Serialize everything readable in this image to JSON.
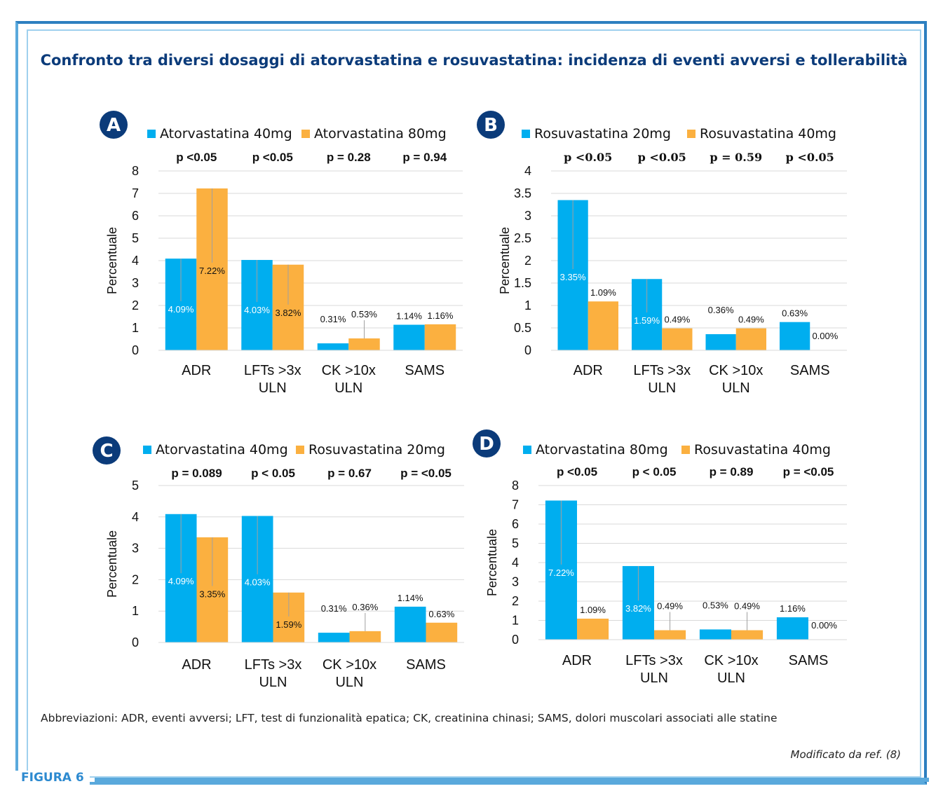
{
  "title": "Confronto tra diversi dosaggi di atorvastatina e rosuvastatina: incidenza di eventi avversi e tollerabilità",
  "abbreviations": "Abbreviazioni: ADR, eventi avversi; LFT, test di funzionalità epatica; CK, creatinina chinasi; SAMS, dolori muscolari associati alle statine",
  "credit": "Modificato da ref. (8)",
  "figure_label": "FIGURA 6",
  "colors": {
    "blue": "#00aeef",
    "orange": "#fbb040",
    "badge": "#0b3b7a",
    "title": "#0b3b7a"
  },
  "chart_data": [
    {
      "panel": "A",
      "type": "bar",
      "ylabel": "Percentuale",
      "ylim": [
        0,
        8
      ],
      "yticks": [
        "0",
        "1",
        "2",
        "3",
        "4",
        "5",
        "6",
        "7",
        "8"
      ],
      "categories": [
        [
          "ADR"
        ],
        [
          "LFTs >3x",
          "ULN"
        ],
        [
          "CK >10x",
          "ULN"
        ],
        [
          "SAMS"
        ]
      ],
      "p_values": [
        "p <0.05",
        "p <0.05",
        "p = 0.28",
        "p = 0.94"
      ],
      "series": [
        {
          "name": "Atorvastatina 40mg",
          "values": [
            4.09,
            4.03,
            0.31,
            1.14
          ],
          "labels": [
            "4.09%",
            "4.03%",
            "0.31%",
            "1.14%"
          ]
        },
        {
          "name": "Atorvastatina 80mg",
          "values": [
            7.22,
            3.82,
            0.53,
            1.16
          ],
          "labels": [
            "7.22%",
            "3.82%",
            "0.53%",
            "1.16%"
          ]
        }
      ]
    },
    {
      "panel": "B",
      "type": "bar",
      "ylabel": "Percentuale",
      "ylim": [
        0,
        4
      ],
      "yticks": [
        "0",
        "0.5",
        "1",
        "1.5",
        "2",
        "2.5",
        "3",
        "3.5",
        "4"
      ],
      "categories": [
        [
          "ADR"
        ],
        [
          "LFTs >3x",
          "ULN"
        ],
        [
          "CK >10x",
          "ULN"
        ],
        [
          "SAMS"
        ]
      ],
      "p_values": [
        "p <0.05",
        "p <0.05",
        "p = 0.59",
        "p <0.05"
      ],
      "series": [
        {
          "name": "Rosuvastatina 20mg",
          "values": [
            3.35,
            1.59,
            0.36,
            0.63
          ],
          "labels": [
            "3.35%",
            "1.59%",
            "0.36%",
            "0.63%"
          ]
        },
        {
          "name": "Rosuvastatina 40mg",
          "values": [
            1.09,
            0.49,
            0.49,
            0.0
          ],
          "labels": [
            "1.09%",
            "0.49%",
            "0.49%",
            "0.00%"
          ]
        }
      ]
    },
    {
      "panel": "C",
      "type": "bar",
      "ylabel": "Percentuale",
      "ylim": [
        0,
        5
      ],
      "yticks": [
        "0",
        "1",
        "2",
        "3",
        "4",
        "5"
      ],
      "categories": [
        [
          "ADR"
        ],
        [
          "LFTs >3x",
          "ULN"
        ],
        [
          "CK >10x",
          "ULN"
        ],
        [
          "SAMS"
        ]
      ],
      "p_values": [
        "p = 0.089",
        "p < 0.05",
        "p = 0.67",
        "p = <0.05"
      ],
      "series": [
        {
          "name": "Atorvastatina 40mg",
          "values": [
            4.09,
            4.03,
            0.31,
            1.14
          ],
          "labels": [
            "4.09%",
            "4.03%",
            "0.31%",
            "1.14%"
          ]
        },
        {
          "name": "Rosuvastatina 20mg",
          "values": [
            3.35,
            1.59,
            0.36,
            0.63
          ],
          "labels": [
            "3.35%",
            "1.59%",
            "0.36%",
            "0.63%"
          ]
        }
      ]
    },
    {
      "panel": "D",
      "type": "bar",
      "ylabel": "Percentuale",
      "ylim": [
        0,
        8
      ],
      "yticks": [
        "0",
        "1",
        "2",
        "3",
        "4",
        "5",
        "6",
        "7",
        "8"
      ],
      "categories": [
        [
          "ADR"
        ],
        [
          "LFTs >3x",
          "ULN"
        ],
        [
          "CK >10x",
          "ULN"
        ],
        [
          "SAMS"
        ]
      ],
      "p_values": [
        "p <0.05",
        "p < 0.05",
        "p = 0.89",
        "p = <0.05"
      ],
      "series": [
        {
          "name": "Atorvastatina 80mg",
          "values": [
            7.22,
            3.82,
            0.53,
            1.16
          ],
          "labels": [
            "7.22%",
            "3.82%",
            "0.53%",
            "1.16%"
          ]
        },
        {
          "name": "Rosuvastatina 40mg",
          "values": [
            1.09,
            0.49,
            0.49,
            0.0
          ],
          "labels": [
            "1.09%",
            "0.49%",
            "0.49%",
            "0.00%"
          ]
        }
      ]
    }
  ]
}
